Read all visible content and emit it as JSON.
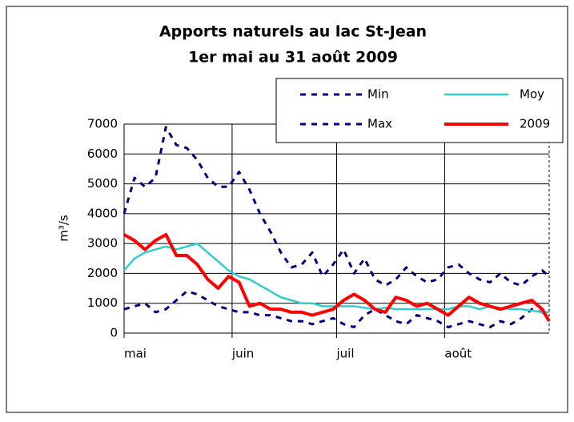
{
  "chart_data": {
    "type": "line",
    "title": "Apports naturels au  lac St-Jean",
    "subtitle": "1er mai au 31 août 2009",
    "ylabel": "m³/s",
    "x": [
      0,
      3,
      6,
      9,
      12,
      15,
      18,
      21,
      24,
      27,
      30,
      33,
      36,
      39,
      42,
      45,
      48,
      51,
      54,
      57,
      60,
      63,
      66,
      69,
      72,
      75,
      78,
      81,
      84,
      87,
      90,
      93,
      96,
      99,
      102,
      105,
      108,
      111,
      114,
      117,
      120,
      122
    ],
    "xlim": [
      0,
      122
    ],
    "xticks": [
      {
        "value": 0,
        "label": "mai"
      },
      {
        "value": 31,
        "label": "juin"
      },
      {
        "value": 61,
        "label": "juil"
      },
      {
        "value": 92,
        "label": "août"
      }
    ],
    "ylim": [
      0,
      7000
    ],
    "yticks": [
      0,
      1000,
      2000,
      3000,
      4000,
      5000,
      6000,
      7000
    ],
    "grid": true,
    "legend": "top-right",
    "series": [
      {
        "name": "Min",
        "color": "#000080",
        "dashed": true,
        "values": [
          800,
          900,
          1000,
          700,
          800,
          1100,
          1400,
          1300,
          1100,
          900,
          800,
          700,
          700,
          600,
          600,
          500,
          400,
          400,
          300,
          400,
          500,
          300,
          200,
          600,
          800,
          600,
          400,
          300,
          600,
          500,
          400,
          200,
          300,
          400,
          300,
          200,
          400,
          300,
          500,
          800,
          700,
          600
        ]
      },
      {
        "name": "Moy",
        "color": "#33cccc",
        "dashed": false,
        "values": [
          2100,
          2500,
          2700,
          2800,
          2900,
          2800,
          2900,
          3000,
          2700,
          2400,
          2100,
          1900,
          1800,
          1600,
          1400,
          1200,
          1100,
          1000,
          1000,
          900,
          900,
          900,
          900,
          850,
          800,
          850,
          800,
          800,
          800,
          800,
          800,
          800,
          900,
          900,
          800,
          900,
          850,
          800,
          800,
          750,
          700,
          700
        ]
      },
      {
        "name": "Max",
        "color": "#000080",
        "dashed": true,
        "values": [
          4000,
          5200,
          4900,
          5200,
          6900,
          6300,
          6200,
          5800,
          5200,
          4900,
          4900,
          5400,
          4800,
          4000,
          3400,
          2700,
          2200,
          2300,
          2700,
          1900,
          2300,
          2800,
          2000,
          2500,
          1800,
          1600,
          1800,
          2200,
          1900,
          1700,
          1800,
          2200,
          2300,
          2000,
          1800,
          1700,
          2000,
          1700,
          1600,
          1900,
          2100,
          1900
        ]
      },
      {
        "name": "2009",
        "color": "#ff0000",
        "dashed": false,
        "values": [
          3300,
          3100,
          2800,
          3100,
          3300,
          2600,
          2600,
          2300,
          1800,
          1500,
          1900,
          1700,
          900,
          1000,
          800,
          800,
          700,
          700,
          600,
          700,
          800,
          1100,
          1300,
          1100,
          800,
          700,
          1200,
          1100,
          900,
          1000,
          800,
          600,
          900,
          1200,
          1000,
          900,
          800,
          900,
          1000,
          1100,
          800,
          400
        ]
      }
    ]
  }
}
